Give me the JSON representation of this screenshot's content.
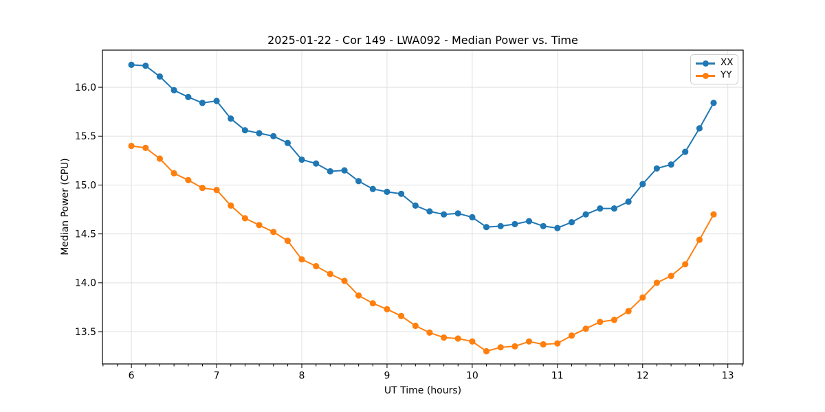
{
  "chart_data": {
    "type": "line",
    "title": "2025-01-22 - Cor 149 - LWA092 - Median Power vs. Time",
    "xlabel": "UT Time (hours)",
    "ylabel": "Median Power (CPU)",
    "x": [
      6.0,
      6.1667,
      6.3333,
      6.5,
      6.6667,
      6.8333,
      7.0,
      7.1667,
      7.3333,
      7.5,
      7.6667,
      7.8333,
      8.0,
      8.1667,
      8.3333,
      8.5,
      8.6667,
      8.8333,
      9.0,
      9.1667,
      9.3333,
      9.5,
      9.6667,
      9.8333,
      10.0,
      10.1667,
      10.3333,
      10.5,
      10.6667,
      10.8333,
      11.0,
      11.1667,
      11.3333,
      11.5,
      11.6667,
      11.8333,
      12.0,
      12.1667,
      12.3333,
      12.5,
      12.6667,
      12.8333
    ],
    "series": [
      {
        "name": "XX",
        "color": "#1f77b4",
        "values": [
          16.23,
          16.22,
          16.11,
          15.97,
          15.9,
          15.84,
          15.86,
          15.68,
          15.56,
          15.53,
          15.5,
          15.43,
          15.26,
          15.22,
          15.14,
          15.15,
          15.04,
          14.96,
          14.93,
          14.91,
          14.79,
          14.73,
          14.7,
          14.71,
          14.67,
          14.57,
          14.58,
          14.6,
          14.63,
          14.58,
          14.56,
          14.62,
          14.7,
          14.76,
          14.76,
          14.83,
          15.01,
          15.17,
          15.21,
          15.34,
          15.58,
          15.84
        ]
      },
      {
        "name": "YY",
        "color": "#ff7f0e",
        "values": [
          15.4,
          15.38,
          15.27,
          15.12,
          15.05,
          14.97,
          14.95,
          14.79,
          14.66,
          14.59,
          14.52,
          14.43,
          14.24,
          14.17,
          14.09,
          14.02,
          13.87,
          13.79,
          13.73,
          13.66,
          13.56,
          13.49,
          13.44,
          13.43,
          13.4,
          13.3,
          13.34,
          13.35,
          13.4,
          13.37,
          13.38,
          13.46,
          13.53,
          13.6,
          13.62,
          13.71,
          13.85,
          14.0,
          14.07,
          14.19,
          14.44,
          14.7
        ]
      }
    ],
    "xlim": [
      5.66,
      13.18
    ],
    "ylim": [
      13.17,
      16.38
    ],
    "xticks": [
      6,
      7,
      8,
      9,
      10,
      11,
      12,
      13
    ],
    "xtick_labels": [
      "6",
      "7",
      "8",
      "9",
      "10",
      "11",
      "12",
      "13"
    ],
    "yticks": [
      13.5,
      14.0,
      14.5,
      15.0,
      15.5,
      16.0
    ],
    "ytick_labels": [
      "13.5",
      "14.0",
      "14.5",
      "15.0",
      "15.5",
      "16.0"
    ],
    "minor_xtick_step": 0.16667,
    "grid": true,
    "grid_color": "#e0e0e0",
    "spine_color": "#000000",
    "legend_position": "upper right"
  }
}
